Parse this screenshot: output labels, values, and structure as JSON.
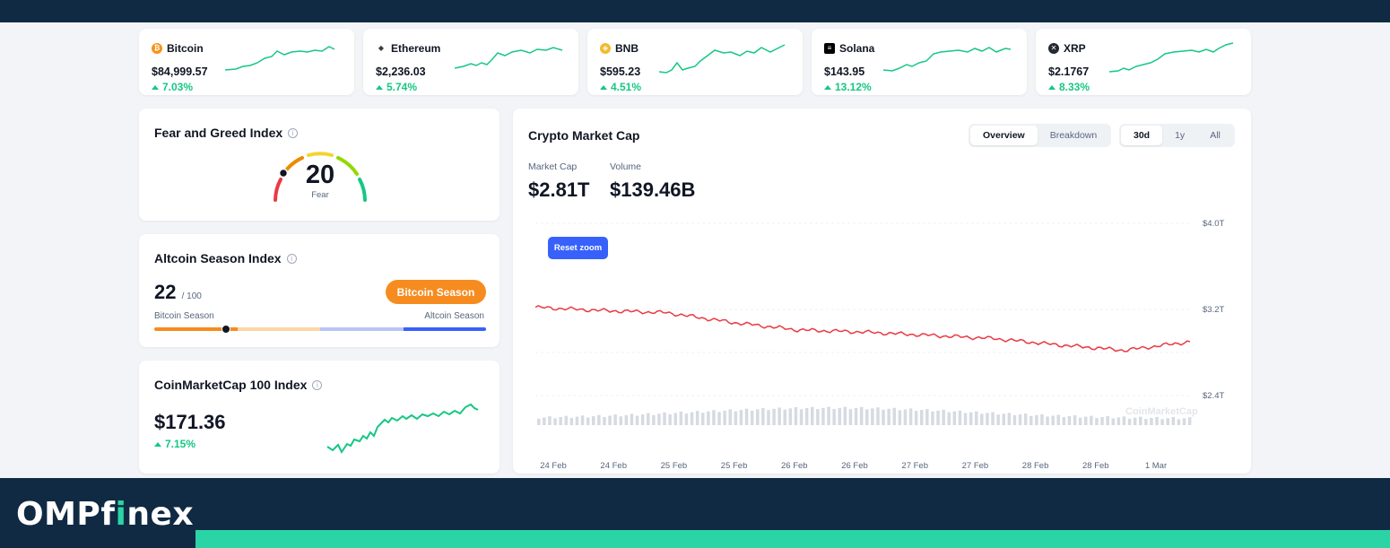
{
  "coins": [
    {
      "name": "Bitcoin",
      "price": "$84,999.57",
      "change": "7.03%",
      "icon": "bitcoin-icon",
      "color": "#f7931a",
      "glyph": "₿"
    },
    {
      "name": "Ethereum",
      "price": "$2,236.03",
      "change": "5.74%",
      "icon": "ethereum-icon",
      "color": "#3c3c3d",
      "glyph": "◆"
    },
    {
      "name": "BNB",
      "price": "$595.23",
      "change": "4.51%",
      "icon": "bnb-icon",
      "color": "#f3ba2f",
      "glyph": "◈"
    },
    {
      "name": "Solana",
      "price": "$143.95",
      "change": "13.12%",
      "icon": "solana-icon",
      "color": "#000000",
      "glyph": "≡"
    },
    {
      "name": "XRP",
      "price": "$2.1767",
      "change": "8.33%",
      "icon": "xrp-icon",
      "color": "#23292f",
      "glyph": "✕"
    }
  ],
  "fear_greed": {
    "title": "Fear and Greed Index",
    "value": "20",
    "label": "Fear",
    "level": 0.2
  },
  "altcoin": {
    "title": "Altcoin Season Index",
    "value": "22",
    "max": "/ 100",
    "badge": "Bitcoin Season",
    "left_label": "Bitcoin Season",
    "right_label": "Altcoin Season",
    "level": 0.22
  },
  "cmc100": {
    "title": "CoinMarketCap 100 Index",
    "value": "$171.36",
    "change": "7.15%"
  },
  "market": {
    "title": "Crypto Market Cap",
    "tabs": [
      "Overview",
      "Breakdown"
    ],
    "active_tab": "Overview",
    "ranges": [
      "30d",
      "1y",
      "All"
    ],
    "active_range": "30d",
    "market_cap_label": "Market Cap",
    "market_cap_value": "$2.81T",
    "volume_label": "Volume",
    "volume_value": "$139.46B",
    "reset_zoom": "Reset zoom"
  },
  "chart_data": {
    "type": "line",
    "x": [
      "24 Feb",
      "24 Feb",
      "25 Feb",
      "25 Feb",
      "26 Feb",
      "26 Feb",
      "27 Feb",
      "27 Feb",
      "28 Feb",
      "28 Feb",
      "1 Mar"
    ],
    "y_ticks": [
      "$4.0T",
      "$3.2T",
      "$2.4T"
    ],
    "ylim": [
      2.4,
      4.0
    ],
    "series": [
      {
        "values": [
          3.22,
          3.19,
          3.17,
          3.08,
          3.01,
          2.99,
          2.96,
          2.93,
          2.87,
          2.82,
          2.9
        ],
        "color": "#ea3943"
      }
    ],
    "volume_bars": true,
    "watermark": "CoinMarketCap"
  },
  "brand": {
    "logo_main": "OMPf",
    "logo_accent": "i",
    "logo_end": "nex",
    "accent": "#2bd4a4",
    "background": "#102a43"
  }
}
